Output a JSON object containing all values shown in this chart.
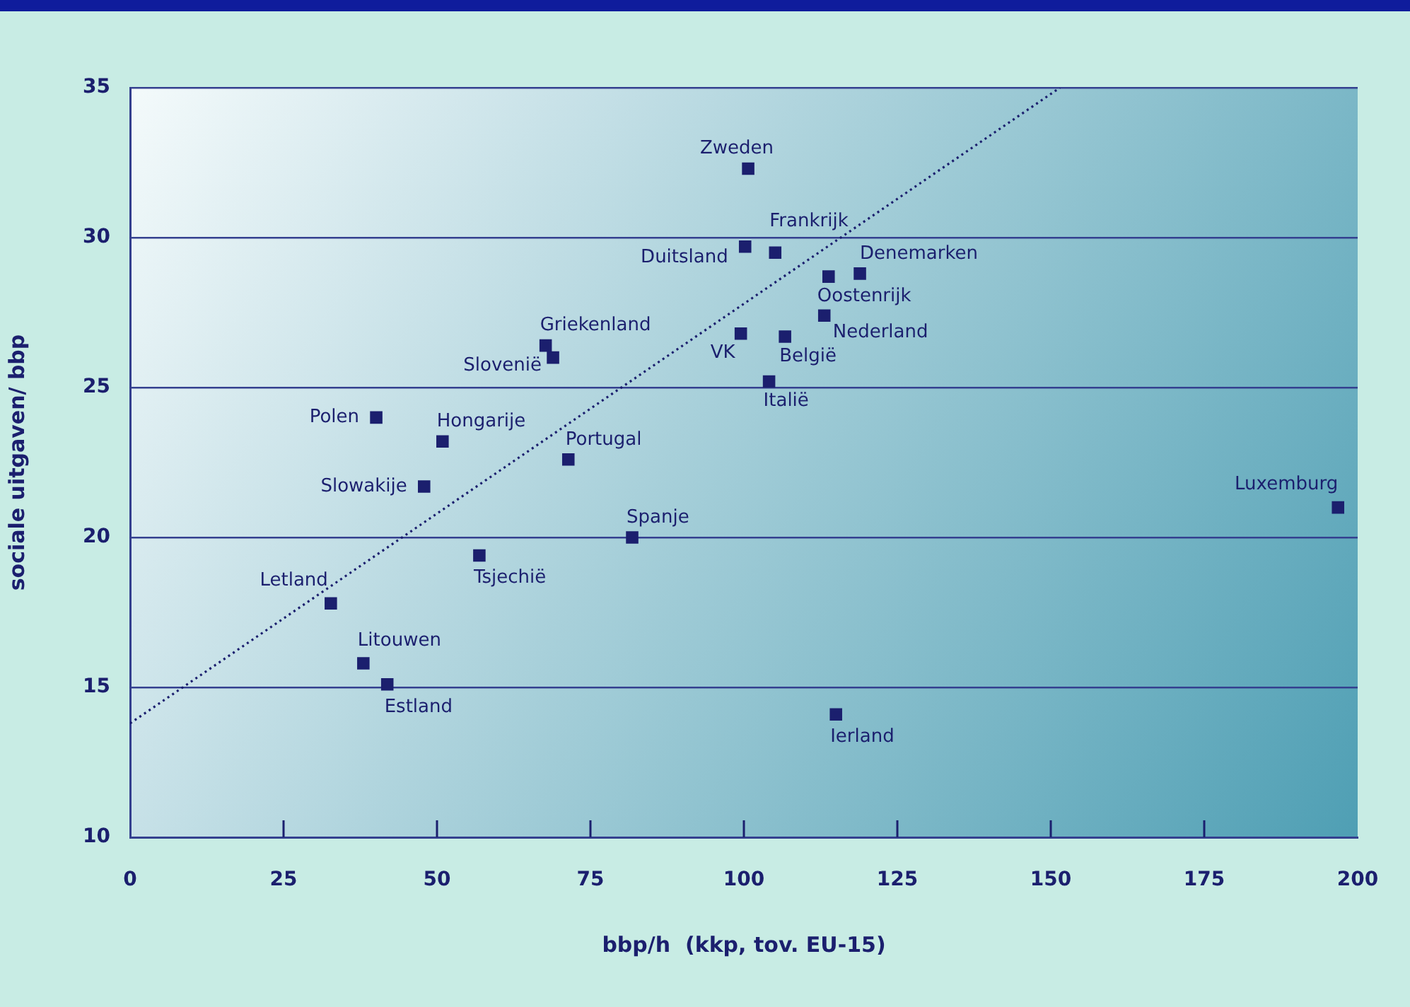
{
  "chart_data": {
    "type": "scatter",
    "xlabel": "bbp/h  (kkp, tov. EU-15)",
    "ylabel": "sociale uitgaven/ bbp",
    "xlim": [
      0,
      200
    ],
    "ylim": [
      10,
      35
    ],
    "xticks": [
      0,
      25,
      50,
      75,
      100,
      125,
      150,
      175,
      200
    ],
    "yticks": [
      10,
      15,
      20,
      25,
      30,
      35
    ],
    "grid": "y",
    "marker": "square",
    "series": [
      {
        "color": "#1b1f6e",
        "x": [
          100.7,
          100.2,
          105.1,
          118.9,
          113.8,
          113.1,
          99.5,
          106.7,
          104.1,
          67.7,
          68.9,
          40.1,
          50.9,
          71.4,
          47.9,
          196.8,
          81.8,
          56.9,
          32.7,
          38.0,
          41.9,
          115.0
        ],
        "values": [
          32.3,
          29.7,
          29.5,
          28.8,
          28.7,
          27.4,
          26.8,
          26.7,
          25.2,
          26.4,
          26.0,
          24.0,
          23.2,
          22.6,
          21.7,
          21.0,
          20.0,
          19.4,
          17.8,
          15.8,
          15.1,
          14.1
        ]
      },
      {
        "type": "line",
        "color": "#1b1f6e",
        "x": [
          0,
          151.5
        ],
        "values": [
          13.8,
          35
        ],
        "line_style": "dotted",
        "marker": "none"
      }
    ],
    "annotations": [
      {
        "text": "Zweden",
        "x": 100.7,
        "y": 32.3
      },
      {
        "text": "Duitsland",
        "x": 100.2,
        "y": 29.7
      },
      {
        "text": "Frankrijk",
        "x": 105.1,
        "y": 29.5
      },
      {
        "text": "Denemarken",
        "x": 118.9,
        "y": 28.8
      },
      {
        "text": "Oostenrijk",
        "x": 113.8,
        "y": 28.7
      },
      {
        "text": "Nederland",
        "x": 113.1,
        "y": 27.4
      },
      {
        "text": "VK",
        "x": 99.5,
        "y": 26.8
      },
      {
        "text": "België",
        "x": 106.7,
        "y": 26.7
      },
      {
        "text": "Italië",
        "x": 104.1,
        "y": 25.2
      },
      {
        "text": "Griekenland",
        "x": 67.7,
        "y": 26.4
      },
      {
        "text": "Slovenië",
        "x": 68.9,
        "y": 26.0
      },
      {
        "text": "Polen",
        "x": 40.1,
        "y": 24.0
      },
      {
        "text": "Hongarije",
        "x": 50.9,
        "y": 23.2
      },
      {
        "text": "Portugal",
        "x": 71.4,
        "y": 22.6
      },
      {
        "text": "Slowakije",
        "x": 47.9,
        "y": 21.7
      },
      {
        "text": "Luxemburg",
        "x": 196.8,
        "y": 21.0
      },
      {
        "text": "Spanje",
        "x": 81.8,
        "y": 20.0
      },
      {
        "text": "Tsjechië",
        "x": 56.9,
        "y": 19.4
      },
      {
        "text": "Letland",
        "x": 32.7,
        "y": 17.8
      },
      {
        "text": "Litouwen",
        "x": 38.0,
        "y": 15.8
      },
      {
        "text": "Estland",
        "x": 41.9,
        "y": 15.1
      },
      {
        "text": "Ierland",
        "x": 115.0,
        "y": 14.1
      }
    ]
  }
}
